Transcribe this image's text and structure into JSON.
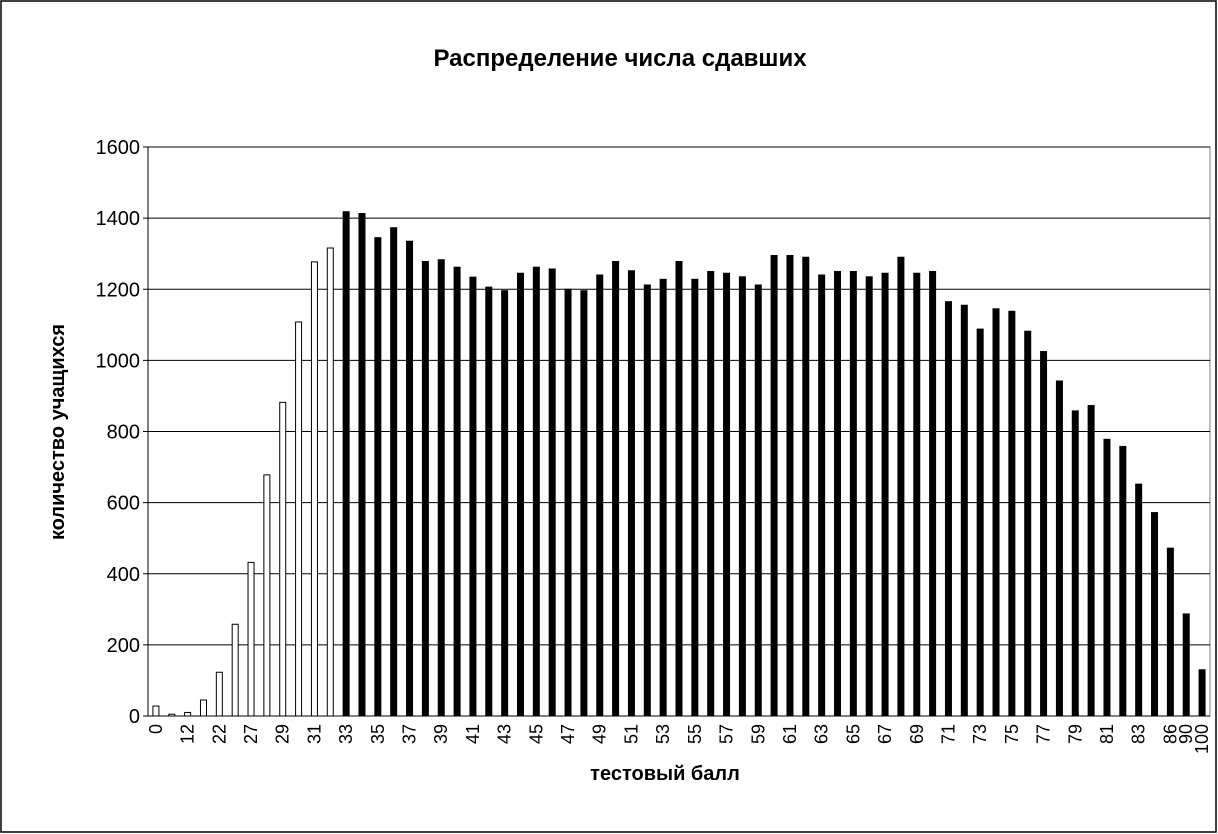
{
  "chart_data": {
    "type": "bar",
    "title": "Распределение числа сдавших",
    "x_label": "тестовый балл",
    "y_label": "количество учащихся",
    "categories": [
      "0",
      null,
      "12",
      null,
      "22",
      null,
      "27",
      null,
      "29",
      null,
      "31",
      null,
      "33",
      null,
      "35",
      null,
      "37",
      null,
      "39",
      null,
      "41",
      null,
      "43",
      null,
      "45",
      null,
      "47",
      null,
      "49",
      null,
      "51",
      null,
      "53",
      null,
      "55",
      null,
      "57",
      null,
      "59",
      null,
      "61",
      null,
      "63",
      null,
      "65",
      null,
      "67",
      null,
      "69",
      null,
      "71",
      null,
      "73",
      null,
      "75",
      null,
      "77",
      null,
      "79",
      null,
      "81",
      null,
      "83",
      null,
      "86",
      "90",
      "100"
    ],
    "values": [
      28,
      5,
      10,
      45,
      123,
      258,
      432,
      678,
      882,
      1108,
      1277,
      1316,
      1418,
      1413,
      1345,
      1373,
      1335,
      1278,
      1283,
      1262,
      1234,
      1206,
      1196,
      1245,
      1262,
      1257,
      1200,
      1196,
      1240,
      1278,
      1252,
      1212,
      1228,
      1278,
      1228,
      1250,
      1245,
      1235,
      1212,
      1295,
      1295,
      1290,
      1240,
      1250,
      1250,
      1235,
      1245,
      1290,
      1245,
      1250,
      1165,
      1155,
      1088,
      1145,
      1138,
      1082,
      1025,
      942,
      858,
      873,
      778,
      758,
      652,
      572,
      472,
      287,
      130
    ],
    "colors": [
      "#ffffff",
      "#ffffff",
      "#ffffff",
      "#ffffff",
      "#ffffff",
      "#ffffff",
      "#ffffff",
      "#ffffff",
      "#ffffff",
      "#ffffff",
      "#ffffff",
      "#ffffff",
      "#000000",
      "#000000",
      "#000000",
      "#000000",
      "#000000",
      "#000000",
      "#000000",
      "#000000",
      "#000000",
      "#000000",
      "#000000",
      "#000000",
      "#000000",
      "#000000",
      "#000000",
      "#000000",
      "#000000",
      "#000000",
      "#000000",
      "#000000",
      "#000000",
      "#000000",
      "#000000",
      "#000000",
      "#000000",
      "#000000",
      "#000000",
      "#000000",
      "#000000",
      "#000000",
      "#000000",
      "#000000",
      "#000000",
      "#000000",
      "#000000",
      "#000000",
      "#000000",
      "#000000",
      "#000000",
      "#000000",
      "#000000",
      "#000000",
      "#000000",
      "#000000",
      "#000000",
      "#000000",
      "#000000",
      "#000000",
      "#000000",
      "#000000",
      "#000000",
      "#000000",
      "#000000",
      "#000000",
      "#000000"
    ],
    "ylim": [
      0,
      1600
    ],
    "yticks": [
      0,
      200,
      400,
      600,
      800,
      1000,
      1200,
      1400,
      1600
    ],
    "grid": true
  }
}
